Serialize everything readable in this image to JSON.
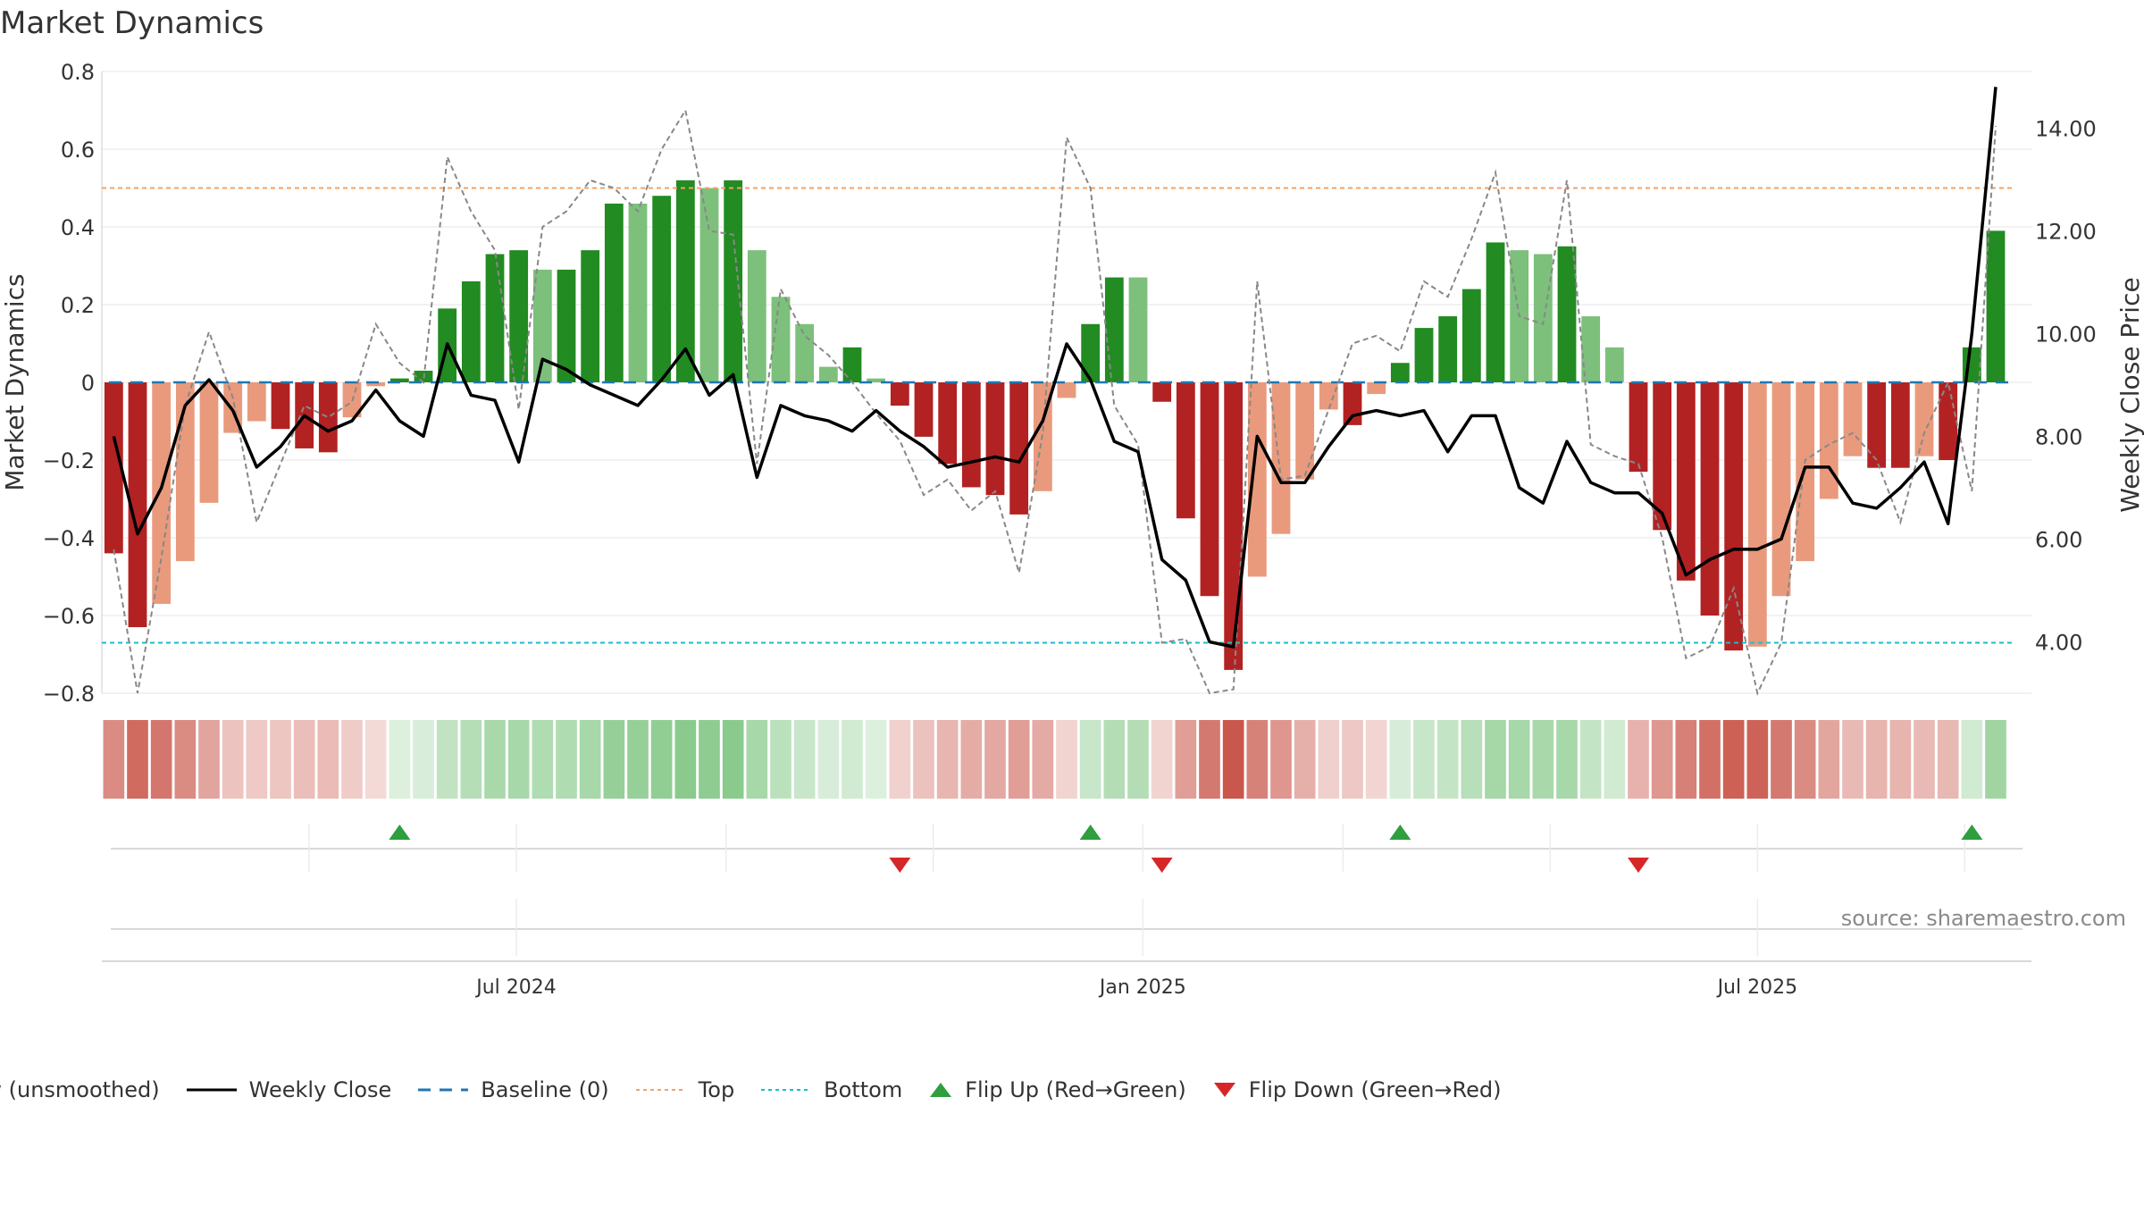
{
  "title": "Market Dynamics",
  "source_note": "source: sharemaestro.com",
  "legend": [
    {
      "label": "Raw (unsmoothed)",
      "icon": "dashed-gray-line",
      "color": "#888888"
    },
    {
      "label": "Weekly Close",
      "icon": "solid-black-line",
      "color": "#000000"
    },
    {
      "label": "Baseline (0)",
      "icon": "dashed-blue-line",
      "color": "#1f77b4"
    },
    {
      "label": "Top",
      "icon": "dotted-orange-line",
      "color": "#f4a261"
    },
    {
      "label": "Bottom",
      "icon": "dotted-cyan-line",
      "color": "#17becf"
    },
    {
      "label": "Flip Up (Red→Green)",
      "icon": "triangle-up-green",
      "color": "#2e9e3e"
    },
    {
      "label": "Flip Down (Green→Red)",
      "icon": "triangle-down-red",
      "color": "#d62728"
    }
  ],
  "colors": {
    "strong_green": "#228b22",
    "light_green": "#7cc07c",
    "strong_red": "#b22222",
    "light_red": "#e99a7c",
    "raw": "#888888",
    "close": "#000000",
    "baseline": "#1f77b4",
    "top": "#f4a261",
    "bottom": "#17becf"
  },
  "chart_data": {
    "type": "bar",
    "title": "Market Dynamics",
    "ylabel_left": "Market Dynamics",
    "ylabel_right": "Weekly Close Price",
    "ylim_left": [
      -0.8,
      0.8
    ],
    "ylim_right": [
      3.0,
      15.1
    ],
    "yticks_left": [
      "0.8",
      "0.6",
      "0.4",
      "0.2",
      "0",
      "−0.2",
      "−0.4",
      "−0.6",
      "−0.8"
    ],
    "yticks_right": [
      "14.00",
      "12.00",
      "10.00",
      "8.00",
      "6.00",
      "4.00"
    ],
    "x_tick_labels": [
      {
        "label": "Jul 2024",
        "week": 17.4
      },
      {
        "label": "Jan 2025",
        "week": 43.7
      },
      {
        "label": "Jul 2025",
        "week": 69.5
      }
    ],
    "x_minor_weeks": [
      8.7,
      17.4,
      26.2,
      34.9,
      43.7,
      52.1,
      60.8,
      69.5,
      78.2
    ],
    "reference_lines": {
      "top": 0.5,
      "bottom": -0.67,
      "baseline": 0
    },
    "weeks": 81,
    "momentum": [
      -0.44,
      -0.63,
      -0.57,
      -0.46,
      -0.31,
      -0.13,
      -0.1,
      -0.12,
      -0.17,
      -0.18,
      -0.09,
      -0.01,
      0.01,
      0.03,
      0.19,
      0.26,
      0.33,
      0.34,
      0.29,
      0.29,
      0.34,
      0.46,
      0.46,
      0.48,
      0.52,
      0.5,
      0.52,
      0.34,
      0.22,
      0.15,
      0.04,
      0.09,
      0.01,
      -0.06,
      -0.14,
      -0.21,
      -0.27,
      -0.29,
      -0.34,
      -0.28,
      -0.04,
      0.15,
      0.27,
      0.27,
      -0.05,
      -0.35,
      -0.55,
      -0.74,
      -0.5,
      -0.39,
      -0.25,
      -0.07,
      -0.11,
      -0.03,
      0.05,
      0.14,
      0.17,
      0.24,
      0.36,
      0.34,
      0.33,
      0.35,
      0.17,
      0.09,
      -0.23,
      -0.38,
      -0.51,
      -0.6,
      -0.69,
      -0.68,
      -0.55,
      -0.46,
      -0.3,
      -0.19,
      -0.22,
      -0.22,
      -0.19,
      -0.2,
      0.09,
      0.39
    ],
    "bar_shade": [
      "strong",
      "strong",
      "light",
      "light",
      "light",
      "light",
      "light",
      "strong",
      "strong",
      "strong",
      "light",
      "light",
      "strong",
      "strong",
      "strong",
      "strong",
      "strong",
      "strong",
      "light",
      "strong",
      "strong",
      "strong",
      "light",
      "strong",
      "strong",
      "light",
      "strong",
      "light",
      "light",
      "light",
      "light",
      "strong",
      "light",
      "strong",
      "strong",
      "strong",
      "strong",
      "strong",
      "strong",
      "light",
      "light",
      "strong",
      "strong",
      "light",
      "strong",
      "strong",
      "strong",
      "strong",
      "light",
      "light",
      "light",
      "light",
      "strong",
      "light",
      "strong",
      "strong",
      "strong",
      "strong",
      "strong",
      "light",
      "light",
      "strong",
      "light",
      "light",
      "strong",
      "strong",
      "strong",
      "strong",
      "strong",
      "light",
      "light",
      "light",
      "light",
      "light",
      "strong",
      "strong",
      "light",
      "strong",
      "strong",
      "strong"
    ],
    "raw": [
      -0.43,
      -0.8,
      -0.45,
      -0.06,
      0.13,
      -0.04,
      -0.36,
      -0.21,
      -0.06,
      -0.09,
      -0.05,
      0.15,
      0.05,
      0.0,
      0.58,
      0.44,
      0.34,
      -0.07,
      0.4,
      0.44,
      0.52,
      0.5,
      0.44,
      0.6,
      0.7,
      0.39,
      0.38,
      -0.21,
      0.24,
      0.12,
      0.07,
      0.0,
      -0.08,
      -0.15,
      -0.29,
      -0.25,
      -0.33,
      -0.28,
      -0.49,
      -0.13,
      0.63,
      0.5,
      -0.06,
      -0.16,
      -0.67,
      -0.66,
      -0.8,
      -0.79,
      0.26,
      -0.25,
      -0.24,
      -0.07,
      0.1,
      0.12,
      0.08,
      0.26,
      0.22,
      0.37,
      0.54,
      0.17,
      0.15,
      0.52,
      -0.16,
      -0.19,
      -0.21,
      -0.4,
      -0.71,
      -0.68,
      -0.53,
      -0.8,
      -0.67,
      -0.2,
      -0.16,
      -0.13,
      -0.2,
      -0.36,
      -0.13,
      0.0,
      -0.28,
      0.66
    ],
    "close": [
      8.0,
      6.1,
      7.0,
      8.6,
      9.1,
      8.5,
      7.4,
      7.8,
      8.4,
      8.1,
      8.3,
      8.9,
      8.3,
      8.0,
      9.8,
      8.8,
      8.7,
      7.5,
      9.5,
      9.3,
      9.0,
      8.8,
      8.6,
      9.1,
      9.7,
      8.8,
      9.2,
      7.2,
      8.6,
      8.4,
      8.3,
      8.1,
      8.5,
      8.1,
      7.8,
      7.4,
      7.5,
      7.6,
      7.5,
      8.3,
      9.8,
      9.1,
      7.9,
      7.7,
      5.6,
      5.2,
      4.0,
      3.9,
      8.0,
      7.1,
      7.1,
      7.8,
      8.4,
      8.5,
      8.4,
      8.5,
      7.7,
      8.4,
      8.4,
      7.0,
      6.7,
      7.9,
      7.1,
      6.9,
      6.9,
      6.5,
      5.3,
      5.6,
      5.8,
      5.8,
      6.0,
      7.4,
      7.4,
      6.7,
      6.6,
      7.0,
      7.5,
      6.3,
      10.0,
      14.8
    ]
  }
}
